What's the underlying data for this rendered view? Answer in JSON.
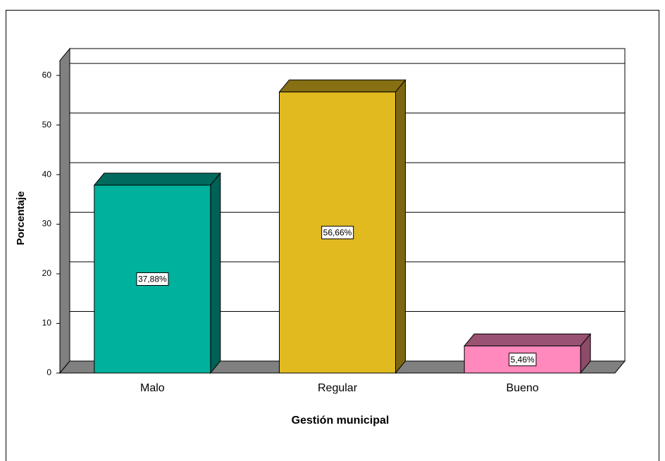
{
  "chart_data": {
    "type": "bar3d",
    "categories": [
      "Malo",
      "Regular",
      "Bueno"
    ],
    "values": [
      37.88,
      56.66,
      5.46
    ],
    "value_labels": [
      "37,88%",
      "56,66%",
      "5,46%"
    ],
    "colors": [
      "#00b19d",
      "#e1ba1f",
      "#ff88bd"
    ],
    "ylim": [
      0,
      63
    ],
    "yticks": [
      0,
      10,
      20,
      30,
      40,
      50,
      60
    ],
    "grid": true,
    "ylabel": "Porcentaje",
    "xlabel": "Gestión municipal"
  }
}
